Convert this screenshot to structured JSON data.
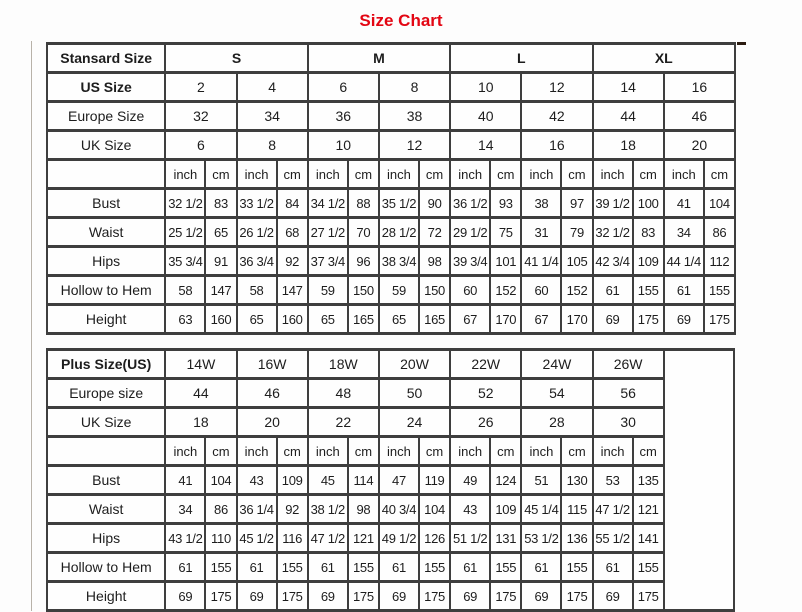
{
  "title": "Size Chart",
  "colors": {
    "title_red": "#e30613",
    "table_border": "#3e3e3e",
    "top_border_brown": "#2b1b10",
    "text": "#1d1d1d"
  },
  "units": [
    "inch",
    "cm"
  ],
  "standard_table": {
    "header_label": "Stansard Size",
    "sizes": [
      "S",
      "M",
      "L",
      "XL"
    ],
    "sizes_bold": true,
    "rows_top": [
      {
        "label": "US Size",
        "bold": true,
        "values": [
          "2",
          "4",
          "6",
          "8",
          "10",
          "12",
          "14",
          "16"
        ]
      },
      {
        "label": "Europe Size",
        "values": [
          "32",
          "34",
          "36",
          "38",
          "40",
          "42",
          "44",
          "46"
        ]
      },
      {
        "label": "UK Size",
        "values": [
          "6",
          "8",
          "10",
          "12",
          "14",
          "16",
          "18",
          "20"
        ]
      }
    ],
    "measure_rows": [
      {
        "label": "Bust",
        "values": [
          "32 1/2",
          "83",
          "33 1/2",
          "84",
          "34 1/2",
          "88",
          "35 1/2",
          "90",
          "36 1/2",
          "93",
          "38",
          "97",
          "39 1/2",
          "100",
          "41",
          "104"
        ]
      },
      {
        "label": "Waist",
        "values": [
          "25 1/2",
          "65",
          "26 1/2",
          "68",
          "27 1/2",
          "70",
          "28 1/2",
          "72",
          "29 1/2",
          "75",
          "31",
          "79",
          "32 1/2",
          "83",
          "34",
          "86"
        ]
      },
      {
        "label": "Hips",
        "values": [
          "35 3/4",
          "91",
          "36 3/4",
          "92",
          "37 3/4",
          "96",
          "38 3/4",
          "98",
          "39 3/4",
          "101",
          "41 1/4",
          "105",
          "42 3/4",
          "109",
          "44 1/4",
          "112"
        ]
      },
      {
        "label": "Hollow to Hem",
        "values": [
          "58",
          "147",
          "58",
          "147",
          "59",
          "150",
          "59",
          "150",
          "60",
          "152",
          "60",
          "152",
          "61",
          "155",
          "61",
          "155"
        ]
      },
      {
        "label": "Height",
        "values": [
          "63",
          "160",
          "65",
          "160",
          "65",
          "165",
          "65",
          "165",
          "67",
          "170",
          "67",
          "170",
          "69",
          "175",
          "69",
          "175"
        ]
      }
    ],
    "trailing_empty": false
  },
  "plus_table": {
    "header_label": "Plus Size(US)",
    "sizes": [
      "14W",
      "16W",
      "18W",
      "20W",
      "22W",
      "24W",
      "26W"
    ],
    "sizes_bold": false,
    "rows_top": [
      {
        "label": "Europe size",
        "values": [
          "44",
          "46",
          "48",
          "50",
          "52",
          "54",
          "56"
        ]
      },
      {
        "label": "UK Size",
        "values": [
          "18",
          "20",
          "22",
          "24",
          "26",
          "28",
          "30"
        ]
      }
    ],
    "measure_rows": [
      {
        "label": "Bust",
        "values": [
          "41",
          "104",
          "43",
          "109",
          "45",
          "114",
          "47",
          "119",
          "49",
          "124",
          "51",
          "130",
          "53",
          "135"
        ]
      },
      {
        "label": "Waist",
        "values": [
          "34",
          "86",
          "36 1/4",
          "92",
          "38 1/2",
          "98",
          "40 3/4",
          "104",
          "43",
          "109",
          "45 1/4",
          "115",
          "47 1/2",
          "121"
        ]
      },
      {
        "label": "Hips",
        "values": [
          "43 1/2",
          "110",
          "45 1/2",
          "116",
          "47 1/2",
          "121",
          "49 1/2",
          "126",
          "51 1/2",
          "131",
          "53 1/2",
          "136",
          "55 1/2",
          "141"
        ]
      },
      {
        "label": "Hollow to Hem",
        "values": [
          "61",
          "155",
          "61",
          "155",
          "61",
          "155",
          "61",
          "155",
          "61",
          "155",
          "61",
          "155",
          "61",
          "155"
        ]
      },
      {
        "label": "Height",
        "values": [
          "69",
          "175",
          "69",
          "175",
          "69",
          "175",
          "69",
          "175",
          "69",
          "175",
          "69",
          "175",
          "69",
          "175"
        ]
      }
    ],
    "trailing_empty": true
  }
}
